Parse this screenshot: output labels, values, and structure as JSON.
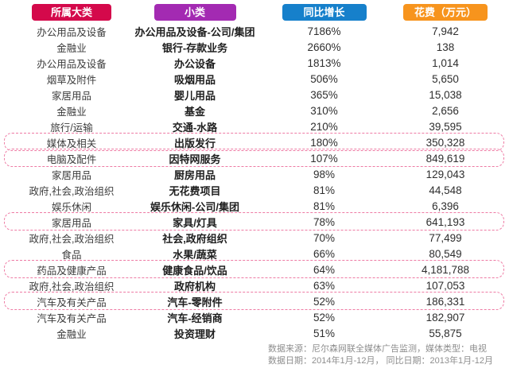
{
  "chart_data": {
    "type": "table",
    "columns": [
      {
        "label": "所属大类",
        "color": "#D4094B"
      },
      {
        "label": "小类",
        "color": "#A32AB2"
      },
      {
        "label": "同比增长",
        "color": "#1680CB"
      },
      {
        "label": "花费（万元）",
        "color": "#F7941D"
      }
    ],
    "highlight_border_color": "#EE7BA4",
    "rows": [
      {
        "category": "办公用品及设备",
        "subcategory": "办公用品及设备-公司/集团",
        "growth": "7186%",
        "spend": "7,942",
        "highlighted": false
      },
      {
        "category": "金融业",
        "subcategory": "银行-存款业务",
        "growth": "2660%",
        "spend": "138",
        "highlighted": false
      },
      {
        "category": "办公用品及设备",
        "subcategory": "办公设备",
        "growth": "1813%",
        "spend": "1,014",
        "highlighted": false
      },
      {
        "category": "烟草及附件",
        "subcategory": "吸烟用品",
        "growth": "506%",
        "spend": "5,650",
        "highlighted": false
      },
      {
        "category": "家居用品",
        "subcategory": "婴儿用品",
        "growth": "365%",
        "spend": "15,038",
        "highlighted": false
      },
      {
        "category": "金融业",
        "subcategory": "基金",
        "growth": "310%",
        "spend": "2,656",
        "highlighted": false
      },
      {
        "category": "旅行/运输",
        "subcategory": "交通-水路",
        "growth": "210%",
        "spend": "39,595",
        "highlighted": false
      },
      {
        "category": "媒体及相关",
        "subcategory": "出版发行",
        "growth": "180%",
        "spend": "350,328",
        "highlighted": true
      },
      {
        "category": "电脑及配件",
        "subcategory": "因特网服务",
        "growth": "107%",
        "spend": "849,619",
        "highlighted": true
      },
      {
        "category": "家居用品",
        "subcategory": "厨房用品",
        "growth": "98%",
        "spend": "129,043",
        "highlighted": false
      },
      {
        "category": "政府,社会,政治组织",
        "subcategory": "无花费项目",
        "growth": "81%",
        "spend": "44,548",
        "highlighted": false
      },
      {
        "category": "娱乐休闲",
        "subcategory": "娱乐休闲-公司/集团",
        "growth": "81%",
        "spend": "6,396",
        "highlighted": false
      },
      {
        "category": "家居用品",
        "subcategory": "家具/灯具",
        "growth": "78%",
        "spend": "641,193",
        "highlighted": true
      },
      {
        "category": "政府,社会,政治组织",
        "subcategory": "社会,政府组织",
        "growth": "70%",
        "spend": "77,499",
        "highlighted": false
      },
      {
        "category": "食品",
        "subcategory": "水果/蔬菜",
        "growth": "66%",
        "spend": "80,549",
        "highlighted": false
      },
      {
        "category": "药品及健康产品",
        "subcategory": "健康食品/饮品",
        "growth": "64%",
        "spend": "4,181,788",
        "highlighted": true
      },
      {
        "category": "政府,社会,政治组织",
        "subcategory": "政府机构",
        "growth": "63%",
        "spend": "107,053",
        "highlighted": false
      },
      {
        "category": "汽车及有关产品",
        "subcategory": "汽车-零附件",
        "growth": "52%",
        "spend": "186,331",
        "highlighted": true
      },
      {
        "category": "汽车及有关产品",
        "subcategory": "汽车-经销商",
        "growth": "52%",
        "spend": "182,907",
        "highlighted": false
      },
      {
        "category": "金融业",
        "subcategory": "投资理财",
        "growth": "51%",
        "spend": "55,875",
        "highlighted": false
      }
    ],
    "annotations": {
      "source": "数据来源：尼尔森网联全媒体广告监测，媒体类型：电视",
      "dates": "数据日期：2014年1月-12月，  同比日期：2013年1月-12月"
    }
  }
}
